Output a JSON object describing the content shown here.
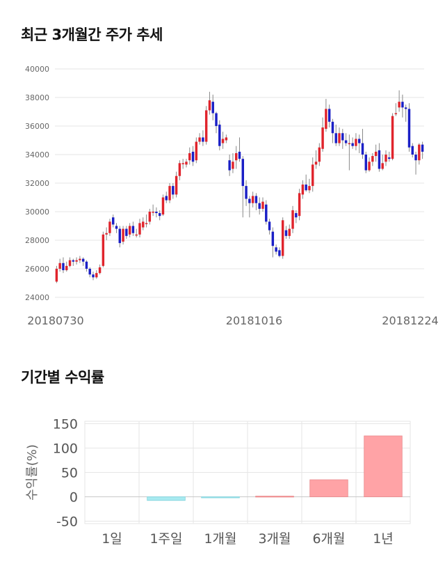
{
  "sections": {
    "price_title": "최근 3개월간 주가 추세",
    "return_title": "기간별 수익률"
  },
  "colors": {
    "up": "#e0242c",
    "down": "#1a1fc6",
    "wick": "#888888",
    "grid": "#e6e6e6",
    "bar_pos": "#ffa3a6",
    "bar_pos_edge": "#e88a8d",
    "bar_neg": "#a8eaf0",
    "bar_neg_edge": "#7fd3dc"
  },
  "chart_data": [
    {
      "type": "candlestick",
      "title": "최근 3개월간 주가 추세",
      "ylim": [
        24000,
        40000
      ],
      "yticks": [
        24000,
        26000,
        28000,
        30000,
        32000,
        34000,
        36000,
        38000,
        40000
      ],
      "x_tick_labels": [
        "20180730",
        "20181016",
        "20181224"
      ],
      "grid": true,
      "series": [
        [
          25100,
          26000,
          26200,
          25000
        ],
        [
          26000,
          26400,
          26700,
          25800
        ],
        [
          26400,
          25900,
          26800,
          25700
        ],
        [
          25900,
          26200,
          26500,
          25800
        ],
        [
          26200,
          26600,
          26800,
          26100
        ],
        [
          26600,
          26500,
          26700,
          26200
        ],
        [
          26500,
          26600,
          26800,
          26300
        ],
        [
          26600,
          26700,
          26900,
          26400
        ],
        [
          26700,
          26500,
          26800,
          26200
        ],
        [
          26500,
          26000,
          26600,
          25800
        ],
        [
          26000,
          25600,
          26100,
          25400
        ],
        [
          25600,
          25400,
          25800,
          25200
        ],
        [
          25400,
          25700,
          25900,
          25300
        ],
        [
          25700,
          26100,
          26300,
          25600
        ],
        [
          26200,
          28400,
          28600,
          26100
        ],
        [
          28400,
          28500,
          28900,
          28000
        ],
        [
          28500,
          29300,
          29500,
          28300
        ],
        [
          29600,
          29100,
          29800,
          28900
        ],
        [
          29000,
          28800,
          29200,
          28500
        ],
        [
          28800,
          27800,
          29000,
          27500
        ],
        [
          27900,
          28800,
          29000,
          27700
        ],
        [
          28800,
          28300,
          29000,
          28100
        ],
        [
          28400,
          29000,
          29200,
          28200
        ],
        [
          29000,
          28500,
          29300,
          28300
        ],
        [
          28400,
          28400,
          28800,
          28200
        ],
        [
          28400,
          29200,
          29500,
          28200
        ],
        [
          28900,
          29300,
          29600,
          28700
        ],
        [
          29200,
          29200,
          29800,
          28900
        ],
        [
          29300,
          30000,
          30200,
          29100
        ],
        [
          30000,
          30000,
          30500,
          29700
        ],
        [
          30000,
          29900,
          30300,
          29600
        ],
        [
          29900,
          29700,
          30100,
          29400
        ],
        [
          29800,
          31000,
          31200,
          29700
        ],
        [
          31100,
          30800,
          31400,
          30600
        ],
        [
          30800,
          31800,
          32000,
          30600
        ],
        [
          31800,
          31200,
          32000,
          30900
        ],
        [
          31200,
          32500,
          32800,
          31000
        ],
        [
          32500,
          33400,
          33600,
          32200
        ],
        [
          33400,
          33400,
          33700,
          33000
        ],
        [
          33300,
          33500,
          33700,
          33100
        ],
        [
          33600,
          34100,
          34500,
          33300
        ],
        [
          34200,
          33500,
          34600,
          33200
        ],
        [
          33600,
          34900,
          35200,
          33400
        ],
        [
          34900,
          35200,
          35500,
          34700
        ],
        [
          35200,
          34900,
          35700,
          34600
        ],
        [
          34900,
          37100,
          37400,
          34700
        ],
        [
          37100,
          37800,
          38400,
          36800
        ],
        [
          37700,
          36900,
          38200,
          36400
        ],
        [
          36900,
          36000,
          37000,
          35500
        ],
        [
          36100,
          34600,
          36400,
          34300
        ],
        [
          34800,
          35100,
          35600,
          34400
        ],
        [
          35000,
          35200,
          35400,
          34800
        ],
        [
          33600,
          32900,
          34000,
          32500
        ],
        [
          33000,
          33500,
          34100,
          32700
        ],
        [
          33600,
          34100,
          34600,
          33000
        ],
        [
          34200,
          33700,
          35200,
          33500
        ],
        [
          33700,
          31800,
          33900,
          29600
        ],
        [
          31800,
          30900,
          32200,
          30400
        ],
        [
          30900,
          30600,
          31100,
          29600
        ],
        [
          30600,
          31100,
          31400,
          30300
        ],
        [
          31100,
          30600,
          31300,
          30100
        ],
        [
          30600,
          30200,
          31000,
          29800
        ],
        [
          30200,
          30700,
          31000,
          30000
        ],
        [
          30500,
          29300,
          30800,
          29100
        ],
        [
          29300,
          28700,
          29500,
          28400
        ],
        [
          28600,
          27600,
          28900,
          26800
        ],
        [
          27500,
          27200,
          27700,
          27000
        ],
        [
          27300,
          26900,
          27500,
          26800
        ],
        [
          26900,
          29400,
          29600,
          26700
        ],
        [
          28700,
          28300,
          29000,
          28100
        ],
        [
          28300,
          28800,
          29100,
          28100
        ],
        [
          28800,
          30100,
          30400,
          28500
        ],
        [
          29900,
          29600,
          30100,
          29200
        ],
        [
          29700,
          31300,
          31600,
          29400
        ],
        [
          31200,
          31900,
          32200,
          30900
        ],
        [
          31900,
          31500,
          32600,
          31400
        ],
        [
          31500,
          31800,
          32300,
          31300
        ],
        [
          31800,
          33300,
          33800,
          31400
        ],
        [
          33300,
          33500,
          34300,
          33000
        ],
        [
          33500,
          34500,
          34800,
          33200
        ],
        [
          34400,
          35900,
          36600,
          34200
        ],
        [
          35800,
          37200,
          37900,
          35600
        ],
        [
          37200,
          36300,
          37500,
          35900
        ],
        [
          36300,
          35500,
          36500,
          34800
        ],
        [
          35500,
          34800,
          36100,
          34600
        ],
        [
          34800,
          35500,
          35900,
          34600
        ],
        [
          35500,
          35000,
          35800,
          34400
        ],
        [
          35000,
          34800,
          35500,
          34600
        ],
        [
          34800,
          34800,
          35400,
          32900
        ],
        [
          34800,
          34600,
          35200,
          34400
        ],
        [
          34600,
          35100,
          35500,
          34300
        ],
        [
          35100,
          34800,
          35400,
          34100
        ],
        [
          34800,
          34000,
          35800,
          33700
        ],
        [
          34000,
          32900,
          34200,
          32700
        ],
        [
          32900,
          33500,
          33800,
          32800
        ],
        [
          33500,
          33900,
          34100,
          33200
        ],
        [
          33900,
          34200,
          34700,
          33500
        ],
        [
          34300,
          33000,
          34800,
          32800
        ],
        [
          33000,
          33400,
          34000,
          32900
        ],
        [
          33500,
          34000,
          34300,
          33200
        ],
        [
          33800,
          33700,
          34200,
          33500
        ],
        [
          33700,
          36700,
          36900,
          33600
        ],
        [
          36900,
          36900,
          37600,
          36700
        ],
        [
          37300,
          37700,
          38500,
          37000
        ],
        [
          37700,
          37300,
          38200,
          36600
        ],
        [
          37300,
          37200,
          37500,
          36300
        ],
        [
          37200,
          34500,
          37600,
          34200
        ],
        [
          34600,
          34000,
          34800,
          33800
        ],
        [
          34000,
          33600,
          34200,
          32600
        ],
        [
          33600,
          34700,
          34800,
          33300
        ],
        [
          34700,
          34200,
          34900,
          33700
        ]
      ]
    },
    {
      "type": "bar",
      "categories": [
        "1일",
        "1주일",
        "1개월",
        "3개월",
        "6개월",
        "1년"
      ],
      "values": [
        0,
        -7.5,
        -1.8,
        1.5,
        35,
        125
      ],
      "ylabel": "수익률(%)",
      "ylim": [
        -55,
        155
      ],
      "yticks": [
        -50,
        0,
        50,
        100,
        150
      ],
      "grid": true
    }
  ]
}
